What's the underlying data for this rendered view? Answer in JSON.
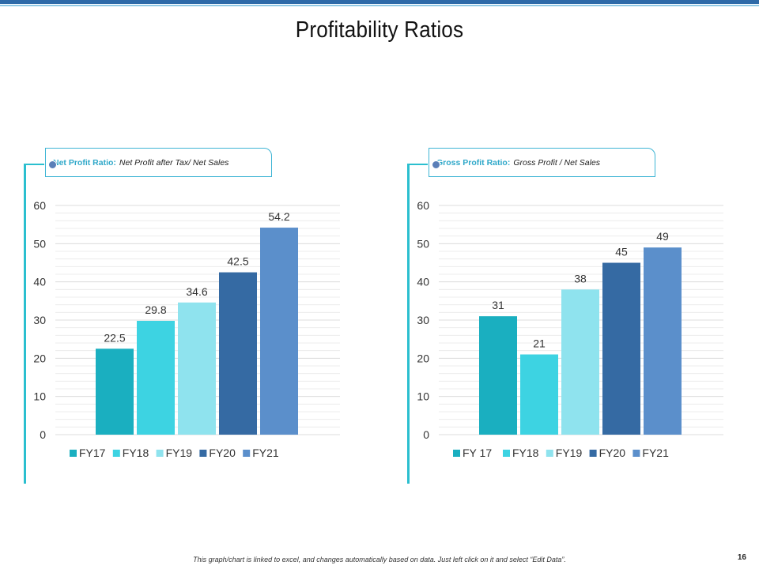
{
  "page": {
    "title": "Profitability Ratios",
    "footer_note": "This graph/chart is linked to excel, and changes automatically based on data. Just left click on it and select “Edit Data”.",
    "page_number": "16"
  },
  "panels": [
    {
      "label_bold": "Net Profit Ratio:",
      "label_text": "Net Profit after Tax/ Net Sales"
    },
    {
      "label_bold": "Gross Profit Ratio:",
      "label_text": "Gross Profit / Net Sales"
    }
  ],
  "colors": [
    "#1aafc0",
    "#3dd3e2",
    "#8fe3ee",
    "#356aa3",
    "#5b8fcb"
  ],
  "chart_data": [
    {
      "type": "bar",
      "title": "Net Profit Ratio",
      "categories": [
        "FY17",
        "FY18",
        "FY19",
        "FY20",
        "FY21"
      ],
      "values": [
        22.5,
        29.8,
        34.6,
        42.5,
        54.2
      ],
      "ylim": [
        0,
        60
      ],
      "yticks": [
        0,
        10,
        20,
        30,
        40,
        50,
        60
      ],
      "xlabel": "",
      "ylabel": "",
      "legend": "bottom",
      "grid": true
    },
    {
      "type": "bar",
      "title": "Gross Profit Ratio",
      "categories": [
        "FY 17",
        "FY18",
        "FY19",
        "FY20",
        "FY21"
      ],
      "values": [
        31,
        21,
        38,
        45,
        49
      ],
      "ylim": [
        0,
        60
      ],
      "yticks": [
        0,
        10,
        20,
        30,
        40,
        50,
        60
      ],
      "xlabel": "",
      "ylabel": "",
      "legend": "bottom",
      "grid": true
    }
  ]
}
